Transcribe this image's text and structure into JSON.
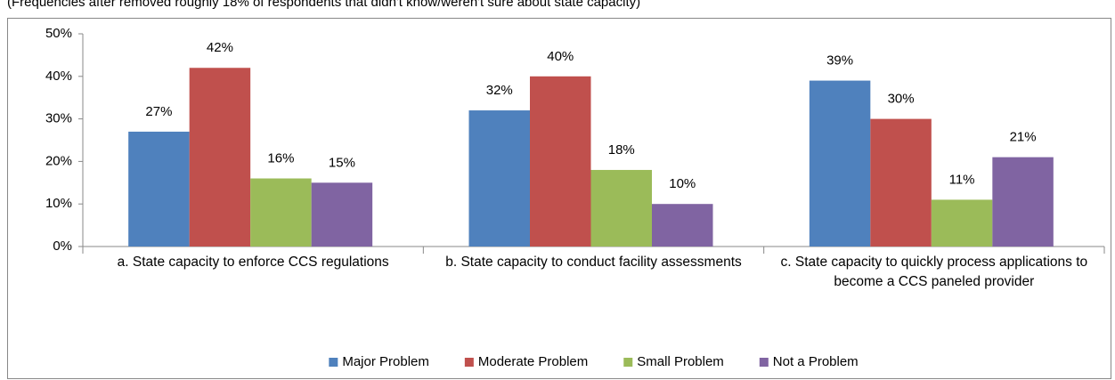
{
  "chart_data": {
    "type": "bar",
    "subtitle": "(Frequencies after removed roughly 18% of respondents that didn't know/weren't sure about state capacity)",
    "categories": [
      "a. State capacity to enforce CCS regulations",
      "b. State capacity to conduct facility assessments",
      "c. State capacity to quickly process applications to become a CCS paneled provider"
    ],
    "series": [
      {
        "name": "Major Problem",
        "color": "#4f81bd",
        "values": [
          27,
          32,
          39
        ],
        "value_labels": [
          "27%",
          "32%",
          "39%"
        ]
      },
      {
        "name": "Moderate Problem",
        "color": "#c0504d",
        "values": [
          42,
          40,
          30
        ],
        "value_labels": [
          "42%",
          "40%",
          "30%"
        ]
      },
      {
        "name": "Small Problem",
        "color": "#9bbb59",
        "values": [
          16,
          18,
          11
        ],
        "value_labels": [
          "16%",
          "18%",
          "11%"
        ]
      },
      {
        "name": "Not a Problem",
        "color": "#8064a2",
        "values": [
          15,
          10,
          21
        ],
        "value_labels": [
          "15%",
          "10%",
          "21%"
        ]
      }
    ],
    "ylim": [
      0,
      50
    ],
    "yticks": [
      {
        "value": 0,
        "label": "0%"
      },
      {
        "value": 10,
        "label": "10%"
      },
      {
        "value": 20,
        "label": "20%"
      },
      {
        "value": 30,
        "label": "30%"
      },
      {
        "value": 40,
        "label": "40%"
      },
      {
        "value": 50,
        "label": "50%"
      }
    ],
    "grid": false,
    "legend": "bottom"
  }
}
